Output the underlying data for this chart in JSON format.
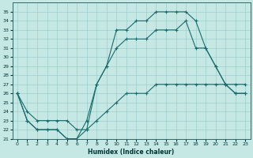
{
  "title": "",
  "xlabel": "Humidex (Indice chaleur)",
  "background_color": "#c5e8e5",
  "grid_color": "#9ecece",
  "line_color": "#1a6b6b",
  "xlim": [
    -0.5,
    23.5
  ],
  "ylim": [
    21,
    36
  ],
  "xticks": [
    0,
    1,
    2,
    3,
    4,
    5,
    6,
    7,
    8,
    9,
    10,
    11,
    12,
    13,
    14,
    15,
    16,
    17,
    18,
    19,
    20,
    21,
    22,
    23
  ],
  "yticks": [
    21,
    22,
    23,
    24,
    25,
    26,
    27,
    28,
    29,
    30,
    31,
    32,
    33,
    34,
    35
  ],
  "series": {
    "line1": {
      "x": [
        0,
        1,
        2,
        3,
        4,
        5,
        6,
        7,
        8,
        9,
        10,
        11,
        12,
        13,
        14,
        15,
        16,
        17,
        18,
        19,
        20,
        21,
        22,
        23
      ],
      "y": [
        26,
        23,
        22,
        22,
        22,
        21,
        21,
        22,
        27,
        29,
        33,
        33,
        34,
        34,
        35,
        35,
        35,
        35,
        34,
        31,
        29,
        27,
        26,
        26
      ]
    },
    "line2": {
      "x": [
        0,
        1,
        2,
        3,
        4,
        5,
        6,
        7,
        8,
        9,
        10,
        11,
        12,
        13,
        14,
        15,
        16,
        17,
        18,
        19,
        20,
        21,
        22,
        23
      ],
      "y": [
        26,
        23,
        22,
        22,
        22,
        21,
        21,
        23,
        27,
        29,
        31,
        32,
        32,
        32,
        33,
        33,
        33,
        34,
        31,
        31,
        29,
        27,
        26,
        26
      ]
    },
    "line3": {
      "x": [
        0,
        1,
        2,
        3,
        4,
        5,
        6,
        7,
        8,
        9,
        10,
        11,
        12,
        13,
        14,
        15,
        16,
        17,
        18,
        19,
        20,
        21,
        22,
        23
      ],
      "y": [
        26,
        24,
        23,
        23,
        23,
        23,
        22,
        22,
        23,
        24,
        25,
        26,
        26,
        26,
        27,
        27,
        27,
        27,
        27,
        27,
        27,
        27,
        27,
        27
      ]
    }
  }
}
